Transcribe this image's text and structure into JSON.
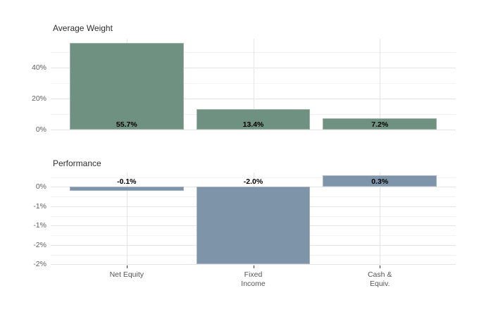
{
  "app": {
    "background": "#ffffff"
  },
  "x_axis": {
    "categories": [
      "Net Equity",
      "Fixed Income",
      "Cash & Equiv."
    ],
    "tick_display": [
      "Net Equity",
      "Fixed\nIncome",
      "Cash &\nEquiv."
    ]
  },
  "chart_data": [
    {
      "type": "bar",
      "title": "Average Weight",
      "categories": [
        "Net Equity",
        "Fixed Income",
        "Cash & Equiv."
      ],
      "values": [
        55.7,
        13.4,
        7.2
      ],
      "bar_labels": [
        "55.7%",
        "13.4%",
        "7.2%"
      ],
      "unit": "%",
      "ylim": [
        0,
        58.5
      ],
      "yticks": {
        "values": [
          0,
          20,
          40
        ],
        "labels": [
          "0%",
          "20%",
          "40%"
        ]
      },
      "minor_gridlines": [
        10,
        30,
        50
      ],
      "grid": true,
      "legend": false,
      "bar_color": "#6F9181",
      "bar_border_color": "#9CB2A5",
      "xlabel": "",
      "ylabel": ""
    },
    {
      "type": "bar",
      "title": "Performance",
      "categories": [
        "Net Equity",
        "Fixed Income",
        "Cash & Equiv."
      ],
      "values": [
        -0.1,
        -2.0,
        0.3
      ],
      "bar_labels": [
        "-0.1%",
        "-2.0%",
        "0.3%"
      ],
      "unit": "%",
      "ylim": [
        -2.03,
        0.37
      ],
      "yticks": {
        "values": [
          0,
          -0.5,
          -1,
          -1.5,
          -2
        ],
        "labels": [
          "0%",
          "-1%",
          "-1%",
          "-2%",
          "-2%"
        ]
      },
      "minor_gridlines": [
        0.25,
        -0.25,
        -0.75,
        -1.25,
        -1.75
      ],
      "grid": true,
      "legend": false,
      "bar_color": "#7E94A9",
      "bar_border_color": "#A5B3C4",
      "xlabel": "",
      "ylabel": ""
    }
  ],
  "style": {
    "grid_major_color": "#E4E4E4",
    "grid_minor_color": "#F2F2F2",
    "axis_text_color": "#5F5F5F",
    "title_text_color": "#2E2E2E",
    "value_label_color": "#000000",
    "tick_mark_color": "#333333"
  }
}
